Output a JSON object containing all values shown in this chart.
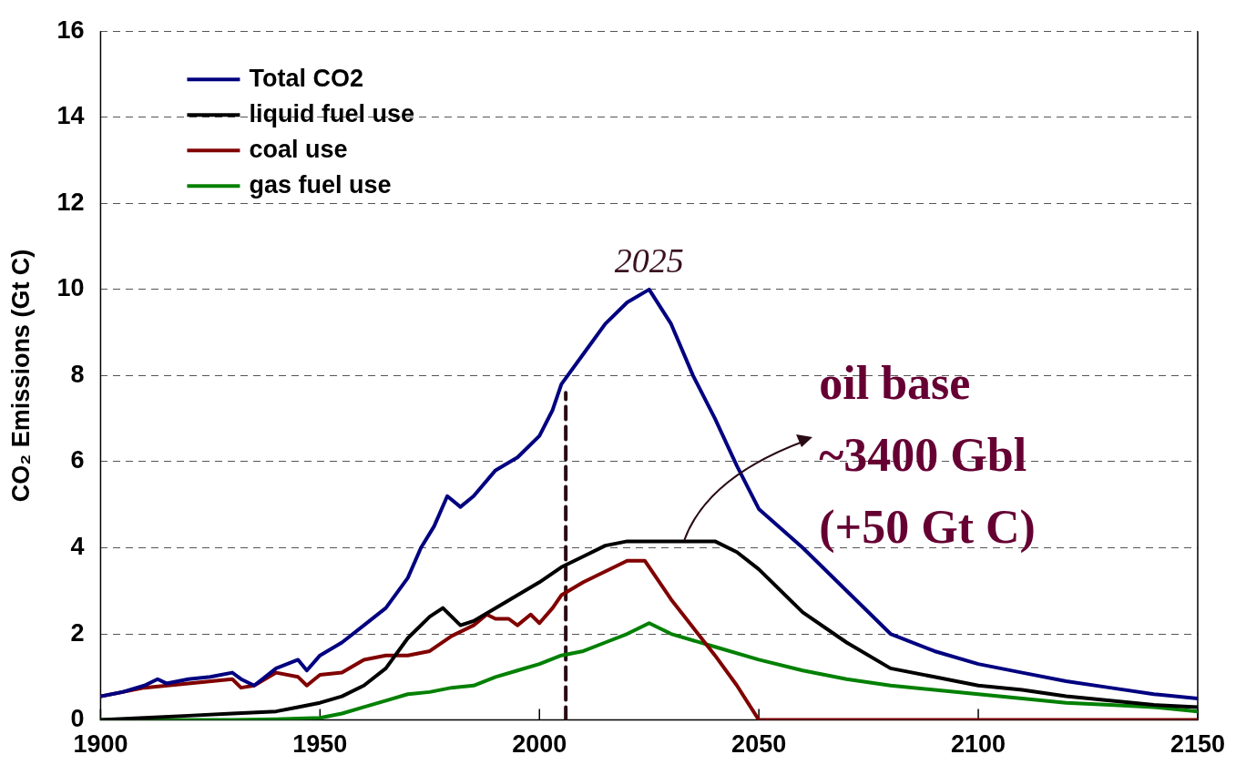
{
  "chart_data": {
    "type": "line",
    "ylabel": "CO₂ Emissions (Gt C)",
    "xlim": [
      1900,
      2150
    ],
    "xticks": [
      1900,
      1950,
      2000,
      2050,
      2100,
      2150
    ],
    "ylim": [
      0,
      16
    ],
    "yticks": [
      0,
      2,
      4,
      6,
      8,
      10,
      12,
      14,
      16
    ],
    "grid": "y",
    "legend": "top left",
    "marker": "none",
    "line_style": "solid",
    "annotations": [
      {
        "text": "2025",
        "x": 2025,
        "y": 10
      },
      {
        "text": "oil base\n~3400 Gbl\n(+50 Gt C)",
        "x": 2033,
        "y": 4.15
      }
    ],
    "series": [
      {
        "name": "Total CO2",
        "color": "#000080",
        "x": [
          1900,
          1905,
          1910,
          1913,
          1915,
          1920,
          1925,
          1930,
          1932,
          1935,
          1940,
          1945,
          1947,
          1950,
          1955,
          1960,
          1965,
          1970,
          1973,
          1976,
          1979,
          1982,
          1985,
          1990,
          1995,
          2000,
          2003,
          2005,
          2010,
          2015,
          2020,
          2025,
          2030,
          2035,
          2040,
          2045,
          2050,
          2060,
          2070,
          2080,
          2090,
          2100,
          2110,
          2120,
          2130,
          2140,
          2150
        ],
        "values": [
          0.55,
          0.65,
          0.8,
          0.95,
          0.85,
          0.95,
          1.0,
          1.1,
          0.95,
          0.8,
          1.2,
          1.4,
          1.15,
          1.5,
          1.8,
          2.2,
          2.6,
          3.3,
          4.0,
          4.5,
          5.2,
          4.95,
          5.2,
          5.8,
          6.1,
          6.6,
          7.2,
          7.8,
          8.5,
          9.2,
          9.7,
          10.0,
          9.2,
          8.0,
          7.0,
          5.9,
          4.9,
          4.0,
          3.0,
          2.0,
          1.6,
          1.3,
          1.1,
          0.9,
          0.75,
          0.6,
          0.5
        ]
      },
      {
        "name": "liquid fuel use",
        "color": "#000000",
        "x": [
          1900,
          1910,
          1920,
          1930,
          1940,
          1945,
          1950,
          1955,
          1960,
          1965,
          1970,
          1975,
          1978,
          1982,
          1985,
          1990,
          1995,
          2000,
          2005,
          2010,
          2015,
          2020,
          2040,
          2045,
          2050,
          2060,
          2070,
          2080,
          2090,
          2100,
          2110,
          2120,
          2130,
          2140,
          2150
        ],
        "values": [
          0,
          0.05,
          0.1,
          0.15,
          0.2,
          0.3,
          0.4,
          0.55,
          0.8,
          1.2,
          1.9,
          2.4,
          2.6,
          2.2,
          2.3,
          2.6,
          2.9,
          3.2,
          3.55,
          3.8,
          4.05,
          4.15,
          4.15,
          3.9,
          3.5,
          2.5,
          1.8,
          1.2,
          1.0,
          0.8,
          0.7,
          0.55,
          0.45,
          0.35,
          0.3
        ]
      },
      {
        "name": "coal use",
        "color": "#800000",
        "x": [
          1900,
          1910,
          1920,
          1930,
          1932,
          1935,
          1940,
          1945,
          1947,
          1950,
          1955,
          1960,
          1965,
          1970,
          1975,
          1980,
          1985,
          1988,
          1990,
          1993,
          1995,
          1998,
          2000,
          2003,
          2005,
          2010,
          2015,
          2020,
          2024,
          2030,
          2040,
          2045,
          2050,
          2150
        ],
        "values": [
          0.55,
          0.75,
          0.85,
          0.95,
          0.75,
          0.8,
          1.1,
          1.0,
          0.8,
          1.05,
          1.1,
          1.4,
          1.5,
          1.5,
          1.6,
          1.95,
          2.2,
          2.45,
          2.35,
          2.35,
          2.2,
          2.45,
          2.25,
          2.6,
          2.9,
          3.2,
          3.45,
          3.7,
          3.7,
          2.8,
          1.5,
          0.8,
          0,
          0
        ]
      },
      {
        "name": "gas fuel use",
        "color": "#008000",
        "x": [
          1900,
          1930,
          1940,
          1950,
          1955,
          1960,
          1965,
          1970,
          1975,
          1980,
          1985,
          1990,
          1995,
          2000,
          2005,
          2010,
          2015,
          2020,
          2025,
          2030,
          2040,
          2050,
          2060,
          2070,
          2080,
          2090,
          2100,
          2110,
          2120,
          2130,
          2140,
          2150
        ],
        "values": [
          0,
          0,
          0.02,
          0.05,
          0.15,
          0.3,
          0.45,
          0.6,
          0.65,
          0.75,
          0.8,
          1.0,
          1.15,
          1.3,
          1.5,
          1.6,
          1.8,
          2.0,
          2.25,
          2.0,
          1.7,
          1.4,
          1.15,
          0.95,
          0.8,
          0.7,
          0.6,
          0.5,
          0.4,
          0.35,
          0.3,
          0.2
        ]
      },
      {
        "color": "#2a0a14",
        "line_style": "dashed",
        "x": [
          2006,
          2006
        ],
        "values": [
          0,
          7.6
        ]
      }
    ]
  }
}
